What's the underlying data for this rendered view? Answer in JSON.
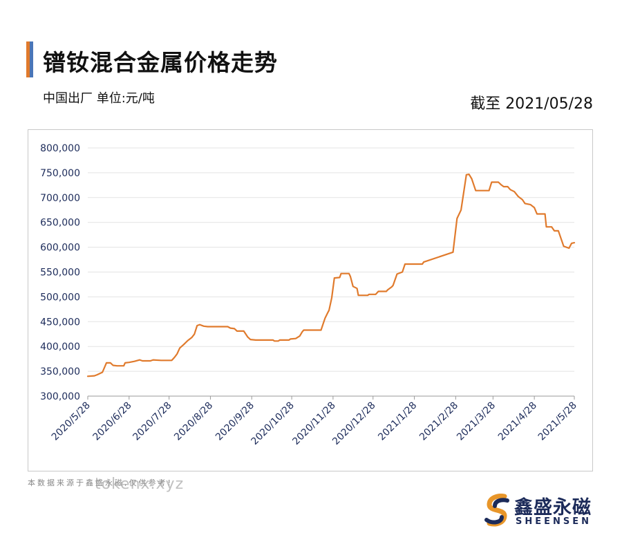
{
  "header": {
    "title": "镨钕混合金属价格走势",
    "subtitle": "中国出厂  单位:元/吨",
    "as_of": "截至 2021/05/28"
  },
  "footer": {
    "source_note": "本数据来源于鑫盛永磁,仅供参考!",
    "watermark": "tokenx.xyz"
  },
  "logo": {
    "name_cn": "鑫盛永磁",
    "name_en": "SHEENSEN",
    "colors": {
      "navy": "#1c2b5a",
      "orange": "#e8962a"
    }
  },
  "chart_data": {
    "type": "line",
    "title": "镨钕混合金属价格走势",
    "xlabel": "",
    "ylabel": "",
    "ylim": [
      300000,
      800000
    ],
    "yticks": [
      300000,
      350000,
      400000,
      450000,
      500000,
      550000,
      600000,
      650000,
      700000,
      750000,
      800000
    ],
    "ytick_labels": [
      "300,000",
      "350,000",
      "400,000",
      "450,000",
      "500,000",
      "550,000",
      "600,000",
      "650,000",
      "700,000",
      "750,000",
      "800,000"
    ],
    "xlim": [
      "2020-05-28",
      "2021-05-28"
    ],
    "xticks": [
      "2020-05-28",
      "2020-06-28",
      "2020-07-28",
      "2020-08-28",
      "2020-09-28",
      "2020-10-28",
      "2020-11-28",
      "2020-12-28",
      "2021-01-28",
      "2021-02-28",
      "2021-03-28",
      "2021-04-28",
      "2021-05-28"
    ],
    "xtick_labels": [
      "2020/5/28",
      "2020/6/28",
      "2020/7/28",
      "2020/8/28",
      "2020/9/28",
      "2020/10/28",
      "2020/11/28",
      "2020/12/28",
      "2021/1/28",
      "2021/2/28",
      "2021/3/28",
      "2021/4/28",
      "2021/5/28"
    ],
    "grid": "horizontal",
    "legend": "none",
    "line_color": "#e07a2c",
    "series": [
      {
        "points": [
          [
            "2020-05-28",
            340000
          ],
          [
            "2020-06-02",
            341000
          ],
          [
            "2020-06-04",
            343000
          ],
          [
            "2020-06-08",
            348000
          ],
          [
            "2020-06-11",
            367000
          ],
          [
            "2020-06-14",
            367000
          ],
          [
            "2020-06-16",
            362000
          ],
          [
            "2020-06-19",
            361000
          ],
          [
            "2020-06-24",
            361000
          ],
          [
            "2020-06-25",
            367000
          ],
          [
            "2020-06-28",
            368000
          ],
          [
            "2020-07-02",
            370000
          ],
          [
            "2020-07-06",
            373000
          ],
          [
            "2020-07-08",
            371000
          ],
          [
            "2020-07-14",
            371000
          ],
          [
            "2020-07-16",
            373000
          ],
          [
            "2020-07-22",
            372000
          ],
          [
            "2020-07-30",
            372000
          ],
          [
            "2020-08-01",
            378000
          ],
          [
            "2020-08-03",
            385000
          ],
          [
            "2020-08-05",
            397000
          ],
          [
            "2020-08-08",
            404000
          ],
          [
            "2020-08-11",
            412000
          ],
          [
            "2020-08-14",
            418000
          ],
          [
            "2020-08-16",
            425000
          ],
          [
            "2020-08-18",
            442000
          ],
          [
            "2020-08-20",
            444000
          ],
          [
            "2020-08-23",
            441000
          ],
          [
            "2020-08-26",
            440000
          ],
          [
            "2020-09-10",
            440000
          ],
          [
            "2020-09-12",
            437000
          ],
          [
            "2020-09-15",
            436000
          ],
          [
            "2020-09-17",
            431000
          ],
          [
            "2020-09-22",
            431000
          ],
          [
            "2020-09-25",
            419000
          ],
          [
            "2020-09-27",
            414000
          ],
          [
            "2020-10-01",
            413000
          ],
          [
            "2020-10-14",
            413000
          ],
          [
            "2020-10-15",
            411000
          ],
          [
            "2020-10-18",
            411000
          ],
          [
            "2020-10-19",
            413000
          ],
          [
            "2020-10-26",
            413000
          ],
          [
            "2020-10-27",
            415000
          ],
          [
            "2020-10-31",
            416000
          ],
          [
            "2020-11-03",
            421000
          ],
          [
            "2020-11-05",
            430000
          ],
          [
            "2020-11-06",
            433000
          ],
          [
            "2020-11-19",
            433000
          ],
          [
            "2020-11-22",
            457000
          ],
          [
            "2020-11-24",
            468000
          ],
          [
            "2020-11-25",
            473000
          ],
          [
            "2020-11-27",
            498000
          ],
          [
            "2020-11-29",
            538000
          ],
          [
            "2020-12-03",
            539000
          ],
          [
            "2020-12-04",
            547000
          ],
          [
            "2020-12-10",
            547000
          ],
          [
            "2020-12-11",
            541000
          ],
          [
            "2020-12-13",
            521000
          ],
          [
            "2020-12-16",
            517000
          ],
          [
            "2020-12-17",
            503000
          ],
          [
            "2020-12-24",
            503000
          ],
          [
            "2020-12-25",
            505000
          ],
          [
            "2020-12-30",
            505000
          ],
          [
            "2021-01-01",
            511000
          ],
          [
            "2021-01-07",
            511000
          ],
          [
            "2021-01-08",
            514000
          ],
          [
            "2021-01-11",
            520000
          ],
          [
            "2021-01-12",
            523000
          ],
          [
            "2021-01-15",
            546000
          ],
          [
            "2021-01-19",
            550000
          ],
          [
            "2021-01-21",
            566000
          ],
          [
            "2021-02-03",
            566000
          ],
          [
            "2021-02-04",
            570000
          ],
          [
            "2021-02-26",
            590000
          ],
          [
            "2021-03-01",
            658000
          ],
          [
            "2021-03-04",
            675000
          ],
          [
            "2021-03-08",
            746000
          ],
          [
            "2021-03-10",
            747000
          ],
          [
            "2021-03-12",
            738000
          ],
          [
            "2021-03-15",
            714000
          ],
          [
            "2021-03-25",
            714000
          ],
          [
            "2021-03-27",
            731000
          ],
          [
            "2021-04-01",
            731000
          ],
          [
            "2021-04-03",
            726000
          ],
          [
            "2021-04-05",
            722000
          ],
          [
            "2021-04-08",
            722000
          ],
          [
            "2021-04-10",
            716000
          ],
          [
            "2021-04-13",
            712000
          ],
          [
            "2021-04-16",
            702000
          ],
          [
            "2021-04-19",
            696000
          ],
          [
            "2021-04-21",
            688000
          ],
          [
            "2021-04-25",
            686000
          ],
          [
            "2021-04-28",
            680000
          ],
          [
            "2021-04-30",
            667000
          ],
          [
            "2021-05-06",
            667000
          ],
          [
            "2021-05-07",
            641000
          ],
          [
            "2021-05-11",
            641000
          ],
          [
            "2021-05-13",
            633000
          ],
          [
            "2021-05-16",
            633000
          ],
          [
            "2021-05-20",
            602000
          ],
          [
            "2021-05-24",
            598000
          ],
          [
            "2021-05-26",
            608000
          ],
          [
            "2021-05-28",
            609000
          ]
        ]
      }
    ]
  }
}
